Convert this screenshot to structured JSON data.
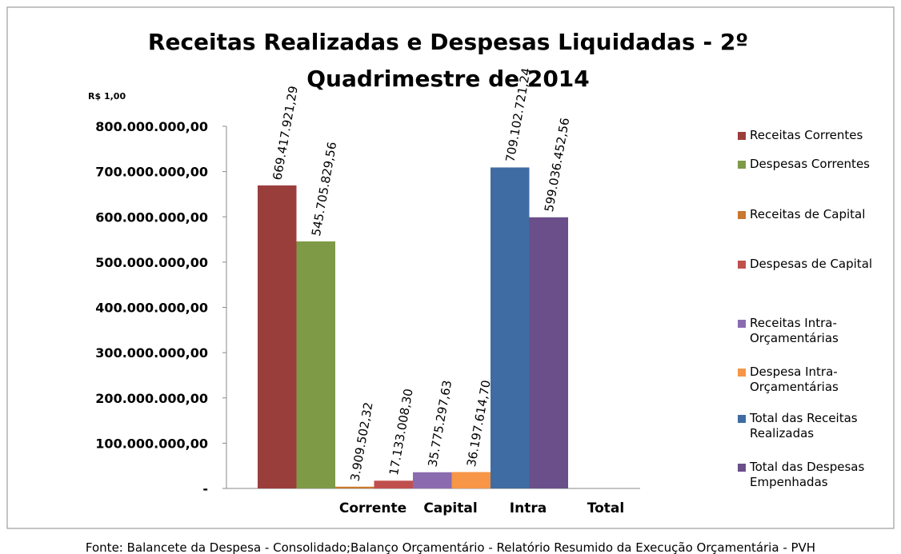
{
  "chart_data": {
    "type": "bar",
    "title_lines": [
      "Receitas Realizadas  e Despesas Liquidadas - 2º",
      "Quadrimestre de 2014"
    ],
    "unit_label": "R$ 1,00",
    "axis_labels": [
      "Corrente",
      "Capital",
      "Intra",
      "Total"
    ],
    "series": [
      {
        "name": "Receitas Correntes",
        "color": "#9a3e3c",
        "values": [
          669417921.29
        ],
        "value_labels": [
          "669.417.921,29"
        ]
      },
      {
        "name": "Despesas Correntes",
        "color": "#7e9a47",
        "values": [
          545705829.56
        ],
        "value_labels": [
          "545.705.829,56"
        ]
      },
      {
        "name": "Receitas de Capital",
        "color": "#c8782f",
        "values": [
          3909502.32
        ],
        "value_labels": [
          "3.909.502,32"
        ]
      },
      {
        "name": "Despesas de Capital",
        "color": "#c0504d",
        "values": [
          17133008.3
        ],
        "value_labels": [
          "17.133.008,30"
        ]
      },
      {
        "name": "Receitas Intra-Orçamentárias",
        "color": "#8b6bb0",
        "values": [
          35775297.63
        ],
        "value_labels": [
          "35.775.297,63"
        ]
      },
      {
        "name": "Despesa Intra-Orçamentárias",
        "color": "#f79646",
        "values": [
          36197614.7
        ],
        "value_labels": [
          "36.197.614,70"
        ]
      },
      {
        "name": "Total das Receitas Realizadas",
        "color": "#3f6ca3",
        "values": [
          709102721.24
        ],
        "value_labels": [
          "709.102.721,24"
        ]
      },
      {
        "name": "Total das Despesas Empenhadas",
        "color": "#6a4f8a",
        "values": [
          599036452.56
        ],
        "value_labels": [
          "599.036.452,56"
        ]
      }
    ],
    "ylim": [
      0,
      800000000
    ],
    "yticks": [
      {
        "value": 0,
        "label": "-"
      },
      {
        "value": 100000000,
        "label": "100.000.000,00"
      },
      {
        "value": 200000000,
        "label": "200.000.000,00"
      },
      {
        "value": 300000000,
        "label": "300.000.000,00"
      },
      {
        "value": 400000000,
        "label": "400.000.000,00"
      },
      {
        "value": 500000000,
        "label": "500.000.000,00"
      },
      {
        "value": 600000000,
        "label": "600.000.000,00"
      },
      {
        "value": 700000000,
        "label": "700.000.000,00"
      },
      {
        "value": 800000000,
        "label": "800.000.000,00"
      }
    ],
    "source": "Fonte: Balancete da Despesa - Consolidado;Balanço Orçamentário - Relatório Resumido da Execução Orçamentária - PVH"
  }
}
